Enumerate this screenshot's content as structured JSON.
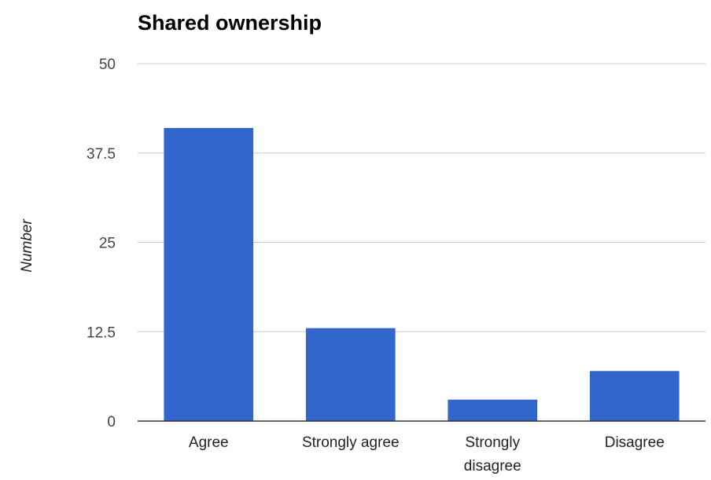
{
  "chart_data": {
    "type": "bar",
    "title": "Shared ownership",
    "xlabel": "",
    "ylabel": "Number",
    "categories": [
      "Agree",
      "Strongly agree",
      "Strongly disagree",
      "Disagree"
    ],
    "category_label_lines": [
      [
        "Agree"
      ],
      [
        "Strongly agree"
      ],
      [
        "Strongly",
        "disagree"
      ],
      [
        "Disagree"
      ]
    ],
    "values": [
      41,
      13,
      3,
      7
    ],
    "ylim": [
      0,
      50
    ],
    "y_ticks": [
      0,
      12.5,
      25,
      37.5,
      50
    ],
    "y_tick_labels": [
      "0",
      "12.5",
      "25",
      "37.5",
      "50"
    ],
    "grid": true,
    "legend": "none",
    "colors": {
      "bar": "#3366cc",
      "grid": "#cccccc",
      "baseline": "#333333"
    }
  }
}
